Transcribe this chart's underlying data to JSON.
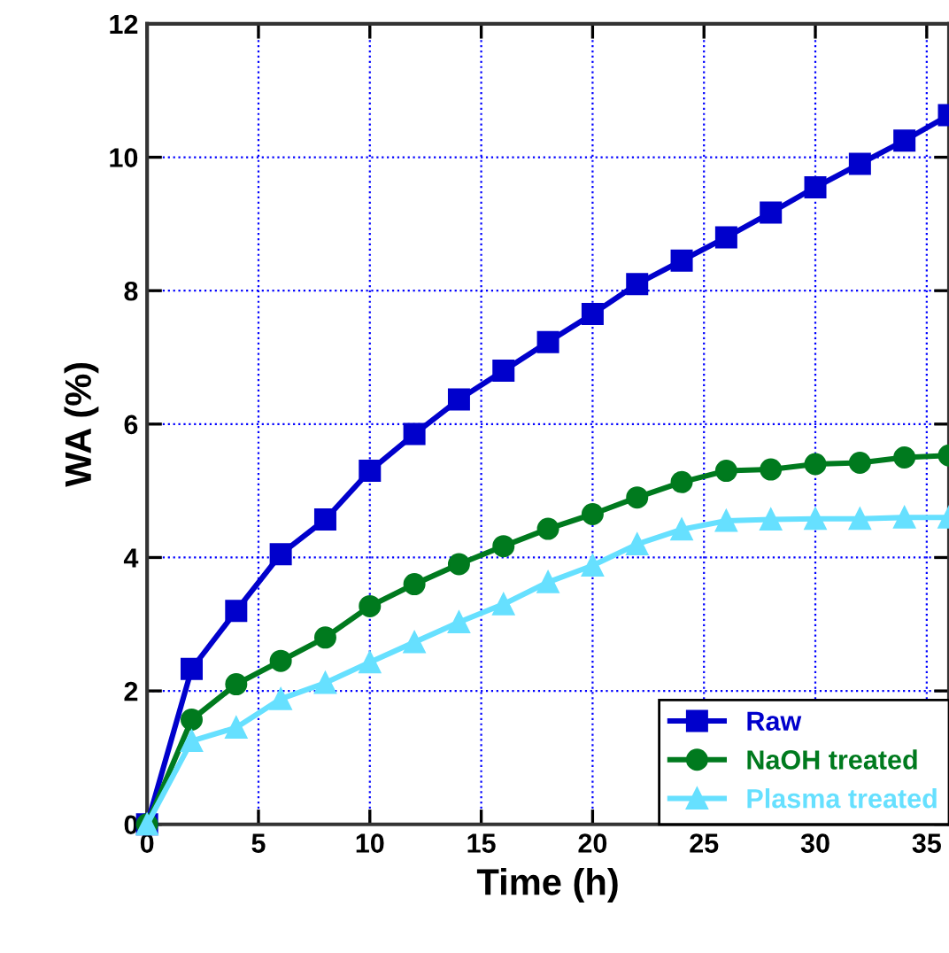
{
  "chart_data": {
    "type": "line",
    "xlabel": "Time (h)",
    "ylabel": "WA (%)",
    "x": [
      0,
      2,
      4,
      6,
      8,
      10,
      12,
      14,
      16,
      18,
      20,
      22,
      24,
      26,
      28,
      30,
      32,
      34,
      36
    ],
    "series": [
      {
        "name": "Raw",
        "color": "#0000cc",
        "marker": "square",
        "values": [
          0,
          2.33,
          3.2,
          4.05,
          4.57,
          5.3,
          5.85,
          6.37,
          6.8,
          7.23,
          7.65,
          8.1,
          8.45,
          8.8,
          9.17,
          9.55,
          9.9,
          10.25,
          10.63
        ]
      },
      {
        "name": "NaOH treated",
        "color": "#007a1e",
        "marker": "circle",
        "values": [
          0,
          1.57,
          2.1,
          2.45,
          2.8,
          3.27,
          3.6,
          3.9,
          4.17,
          4.43,
          4.65,
          4.9,
          5.13,
          5.3,
          5.32,
          5.4,
          5.42,
          5.5,
          5.53
        ]
      },
      {
        "name": "Plasma treated",
        "color": "#66e0ff",
        "marker": "triangle",
        "values": [
          0,
          1.25,
          1.45,
          1.88,
          2.12,
          2.43,
          2.73,
          3.03,
          3.3,
          3.63,
          3.88,
          4.2,
          4.42,
          4.55,
          4.57,
          4.58,
          4.58,
          4.6,
          4.6
        ]
      }
    ],
    "xlim": [
      0,
      36
    ],
    "xticks": [
      0,
      5,
      10,
      15,
      20,
      25,
      30,
      35
    ],
    "ylim": [
      0,
      12
    ],
    "yticks": [
      0,
      2,
      4,
      6,
      8,
      10,
      12
    ],
    "grid": true,
    "legend": "bottom right",
    "line_style": "solid"
  }
}
